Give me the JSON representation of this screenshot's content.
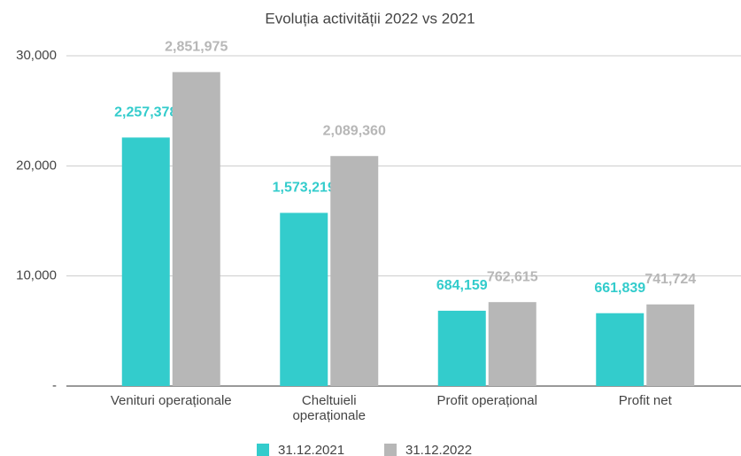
{
  "chart_data": {
    "type": "bar",
    "title": "Evoluția activității 2022 vs 2021",
    "categories": [
      "Venituri operaționale",
      "Cheltuieli\noperaționale",
      "Profit operațional",
      "Profit net"
    ],
    "series": [
      {
        "name": "31.12.2021",
        "color": "#33cccc",
        "values": [
          22573.78,
          15732.19,
          6841.59,
          6618.39
        ],
        "value_labels": [
          "2,257,378",
          "1,573,219",
          "684,159",
          "661,839"
        ]
      },
      {
        "name": "31.12.2022",
        "color": "#b7b7b7",
        "values": [
          28519.75,
          20893.6,
          7626.15,
          7417.24
        ],
        "value_labels": [
          "2,851,975",
          "2,089,360",
          "762,615",
          "741,724"
        ]
      }
    ],
    "ylim": [
      0,
      30000
    ],
    "yticks": [
      {
        "value": 0,
        "label": "-"
      },
      {
        "value": 10000,
        "label": "10,000"
      },
      {
        "value": 20000,
        "label": "20,000"
      },
      {
        "value": 30000,
        "label": "30,000"
      }
    ],
    "grid": true,
    "legend": "bottom"
  }
}
